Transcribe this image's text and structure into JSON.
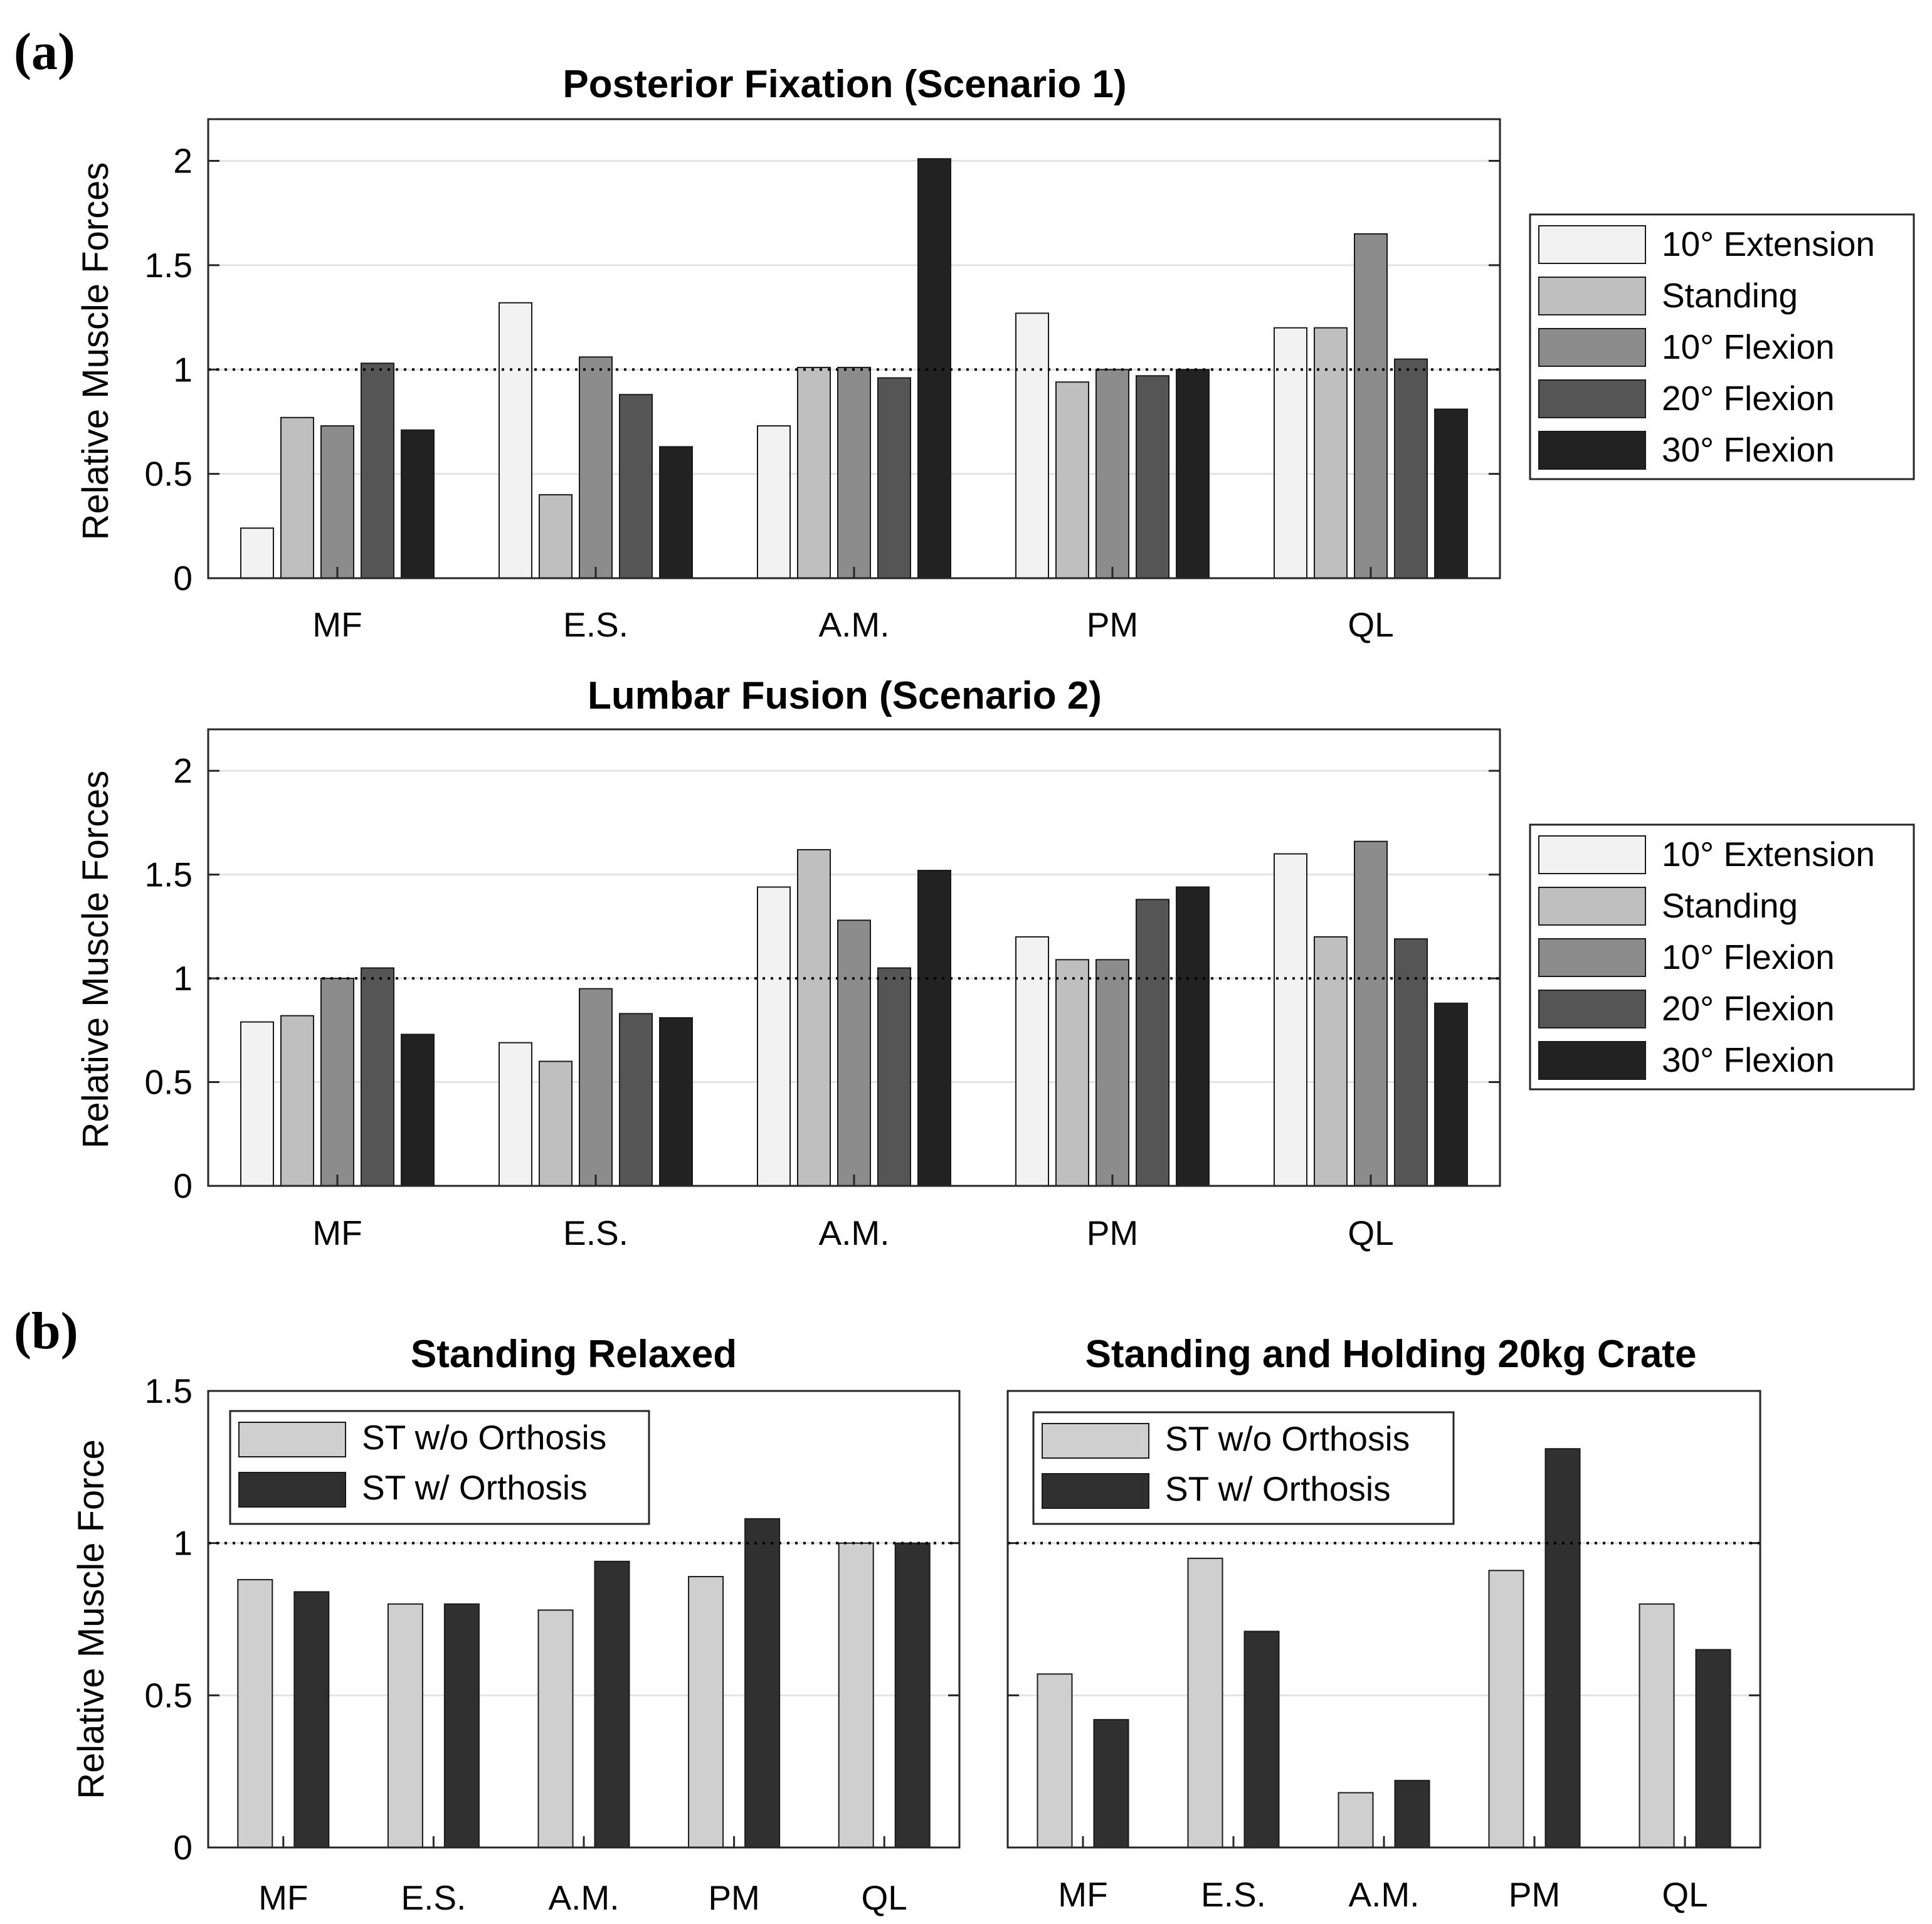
{
  "panel_labels": {
    "a": "(a)",
    "b": "(b)"
  },
  "colors": {
    "ext10": "#f2f2f2",
    "standing": "#bfbfbf",
    "flex10": "#8c8c8c",
    "flex20": "#555555",
    "flex30": "#222222",
    "wo_orthosis": "#cfcfcf",
    "w_orthosis": "#303030",
    "grid": "#e3e3e3",
    "axis": "#262626"
  },
  "chart_data": [
    {
      "type": "bar",
      "title": "Posterior Fixation (Scenario 1)",
      "xlabel": "",
      "ylabel": "Relative Muscle Forces",
      "ylim": [
        0,
        2.2
      ],
      "yticks": [
        "0",
        "0.5",
        "1",
        "1.5",
        "2"
      ],
      "reference_line": 1,
      "grid": true,
      "legend_position": "outside-right",
      "categories": [
        "MF",
        "E.S.",
        "A.M.",
        "PM",
        "QL"
      ],
      "series": [
        {
          "name": "10° Extension",
          "color": "#f2f2f2",
          "values": [
            0.24,
            1.32,
            0.73,
            1.27,
            1.2
          ]
        },
        {
          "name": "Standing",
          "color": "#bfbfbf",
          "values": [
            0.77,
            0.4,
            1.01,
            0.94,
            1.2
          ]
        },
        {
          "name": "10° Flexion",
          "color": "#8c8c8c",
          "values": [
            0.73,
            1.06,
            1.01,
            1.0,
            1.65
          ]
        },
        {
          "name": "20° Flexion",
          "color": "#555555",
          "values": [
            1.03,
            0.88,
            0.96,
            0.97,
            1.05
          ]
        },
        {
          "name": "30° Flexion",
          "color": "#222222",
          "values": [
            0.71,
            0.63,
            2.01,
            1.0,
            0.81
          ]
        }
      ]
    },
    {
      "type": "bar",
      "title": "Lumbar Fusion (Scenario 2)",
      "xlabel": "",
      "ylabel": "Relative Muscle Forces",
      "ylim": [
        0,
        2.2
      ],
      "yticks": [
        "0",
        "0.5",
        "1",
        "1.5",
        "2"
      ],
      "reference_line": 1,
      "grid": true,
      "legend_position": "outside-right",
      "categories": [
        "MF",
        "E.S.",
        "A.M.",
        "PM",
        "QL"
      ],
      "series": [
        {
          "name": "10° Extension",
          "color": "#f2f2f2",
          "values": [
            0.79,
            0.69,
            1.44,
            1.2,
            1.6
          ]
        },
        {
          "name": "Standing",
          "color": "#bfbfbf",
          "values": [
            0.82,
            0.6,
            1.62,
            1.09,
            1.2
          ]
        },
        {
          "name": "10° Flexion",
          "color": "#8c8c8c",
          "values": [
            1.0,
            0.95,
            1.28,
            1.09,
            1.66
          ]
        },
        {
          "name": "20° Flexion",
          "color": "#555555",
          "values": [
            1.05,
            0.83,
            1.05,
            1.38,
            1.19
          ]
        },
        {
          "name": "30° Flexion",
          "color": "#222222",
          "values": [
            0.73,
            0.81,
            1.52,
            1.44,
            0.88
          ]
        }
      ]
    },
    {
      "type": "bar",
      "title": "Standing Relaxed",
      "xlabel": "",
      "ylabel": "Relative Muscle Force",
      "ylim": [
        0,
        1.5
      ],
      "yticks": [
        "0",
        "0.5",
        "1",
        "1.5"
      ],
      "reference_line": 1,
      "grid": true,
      "legend_position": "top-left",
      "categories": [
        "MF",
        "E.S.",
        "A.M.",
        "PM",
        "QL"
      ],
      "series": [
        {
          "name": "ST w/o Orthosis",
          "color": "#cfcfcf",
          "values": [
            0.88,
            0.8,
            0.78,
            0.89,
            1.0
          ]
        },
        {
          "name": "ST w/ Orthosis",
          "color": "#303030",
          "values": [
            0.84,
            0.8,
            0.94,
            1.08,
            1.0
          ]
        }
      ]
    },
    {
      "type": "bar",
      "title": "Standing and Holding 20kg Crate",
      "xlabel": "",
      "ylabel": "",
      "ylim": [
        0,
        1.5
      ],
      "yticks": [],
      "reference_line": 1,
      "grid": true,
      "legend_position": "top-left",
      "categories": [
        "MF",
        "E.S.",
        "A.M.",
        "PM",
        "QL"
      ],
      "series": [
        {
          "name": "ST w/o Orthosis",
          "color": "#cfcfcf",
          "values": [
            0.57,
            0.95,
            0.18,
            0.91,
            0.8
          ]
        },
        {
          "name": "ST w/ Orthosis",
          "color": "#303030",
          "values": [
            0.42,
            0.71,
            0.22,
            1.31,
            0.65
          ]
        }
      ]
    }
  ]
}
